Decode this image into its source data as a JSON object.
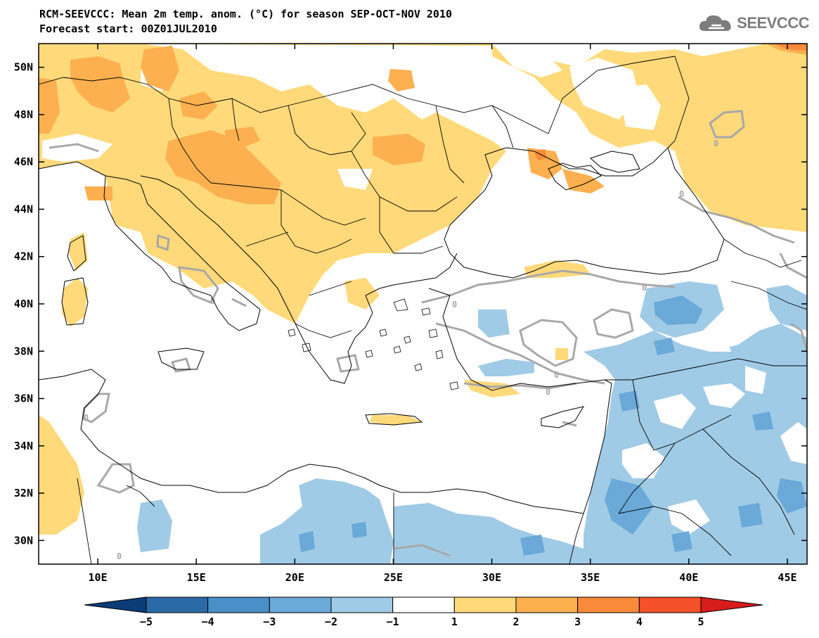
{
  "title": {
    "line1": "RCM-SEEVCCC: Mean 2m temp. anom. (°C) for season SEP-OCT-NOV 2010",
    "line2": "Forecast start: 00Z01JUL2010"
  },
  "logo": {
    "text": "SEEVCCC",
    "icon": "cloud-icon"
  },
  "map": {
    "lon_range": [
      7,
      46
    ],
    "lat_range": [
      29,
      51
    ],
    "x_ticks": [
      "10E",
      "15E",
      "20E",
      "25E",
      "30E",
      "35E",
      "40E",
      "45E"
    ],
    "y_ticks": [
      "30N",
      "32N",
      "34N",
      "36N",
      "38N",
      "40N",
      "42N",
      "44N",
      "46N",
      "48N",
      "50N"
    ],
    "contour_label": "0",
    "colors": {
      "land_outline": "#000000",
      "contour": "#a8a8a8"
    }
  },
  "colorbar": {
    "labels": [
      "−5",
      "−4",
      "−3",
      "−2",
      "−1",
      "1",
      "2",
      "3",
      "4",
      "5"
    ],
    "colors": [
      "#0c3c78",
      "#2a6aa6",
      "#4a8fc8",
      "#6aa9d8",
      "#a0cbe6",
      "#ffffff",
      "#ffd97a",
      "#fdb050",
      "#f98a3a",
      "#f4512a",
      "#d71c1c"
    ]
  }
}
